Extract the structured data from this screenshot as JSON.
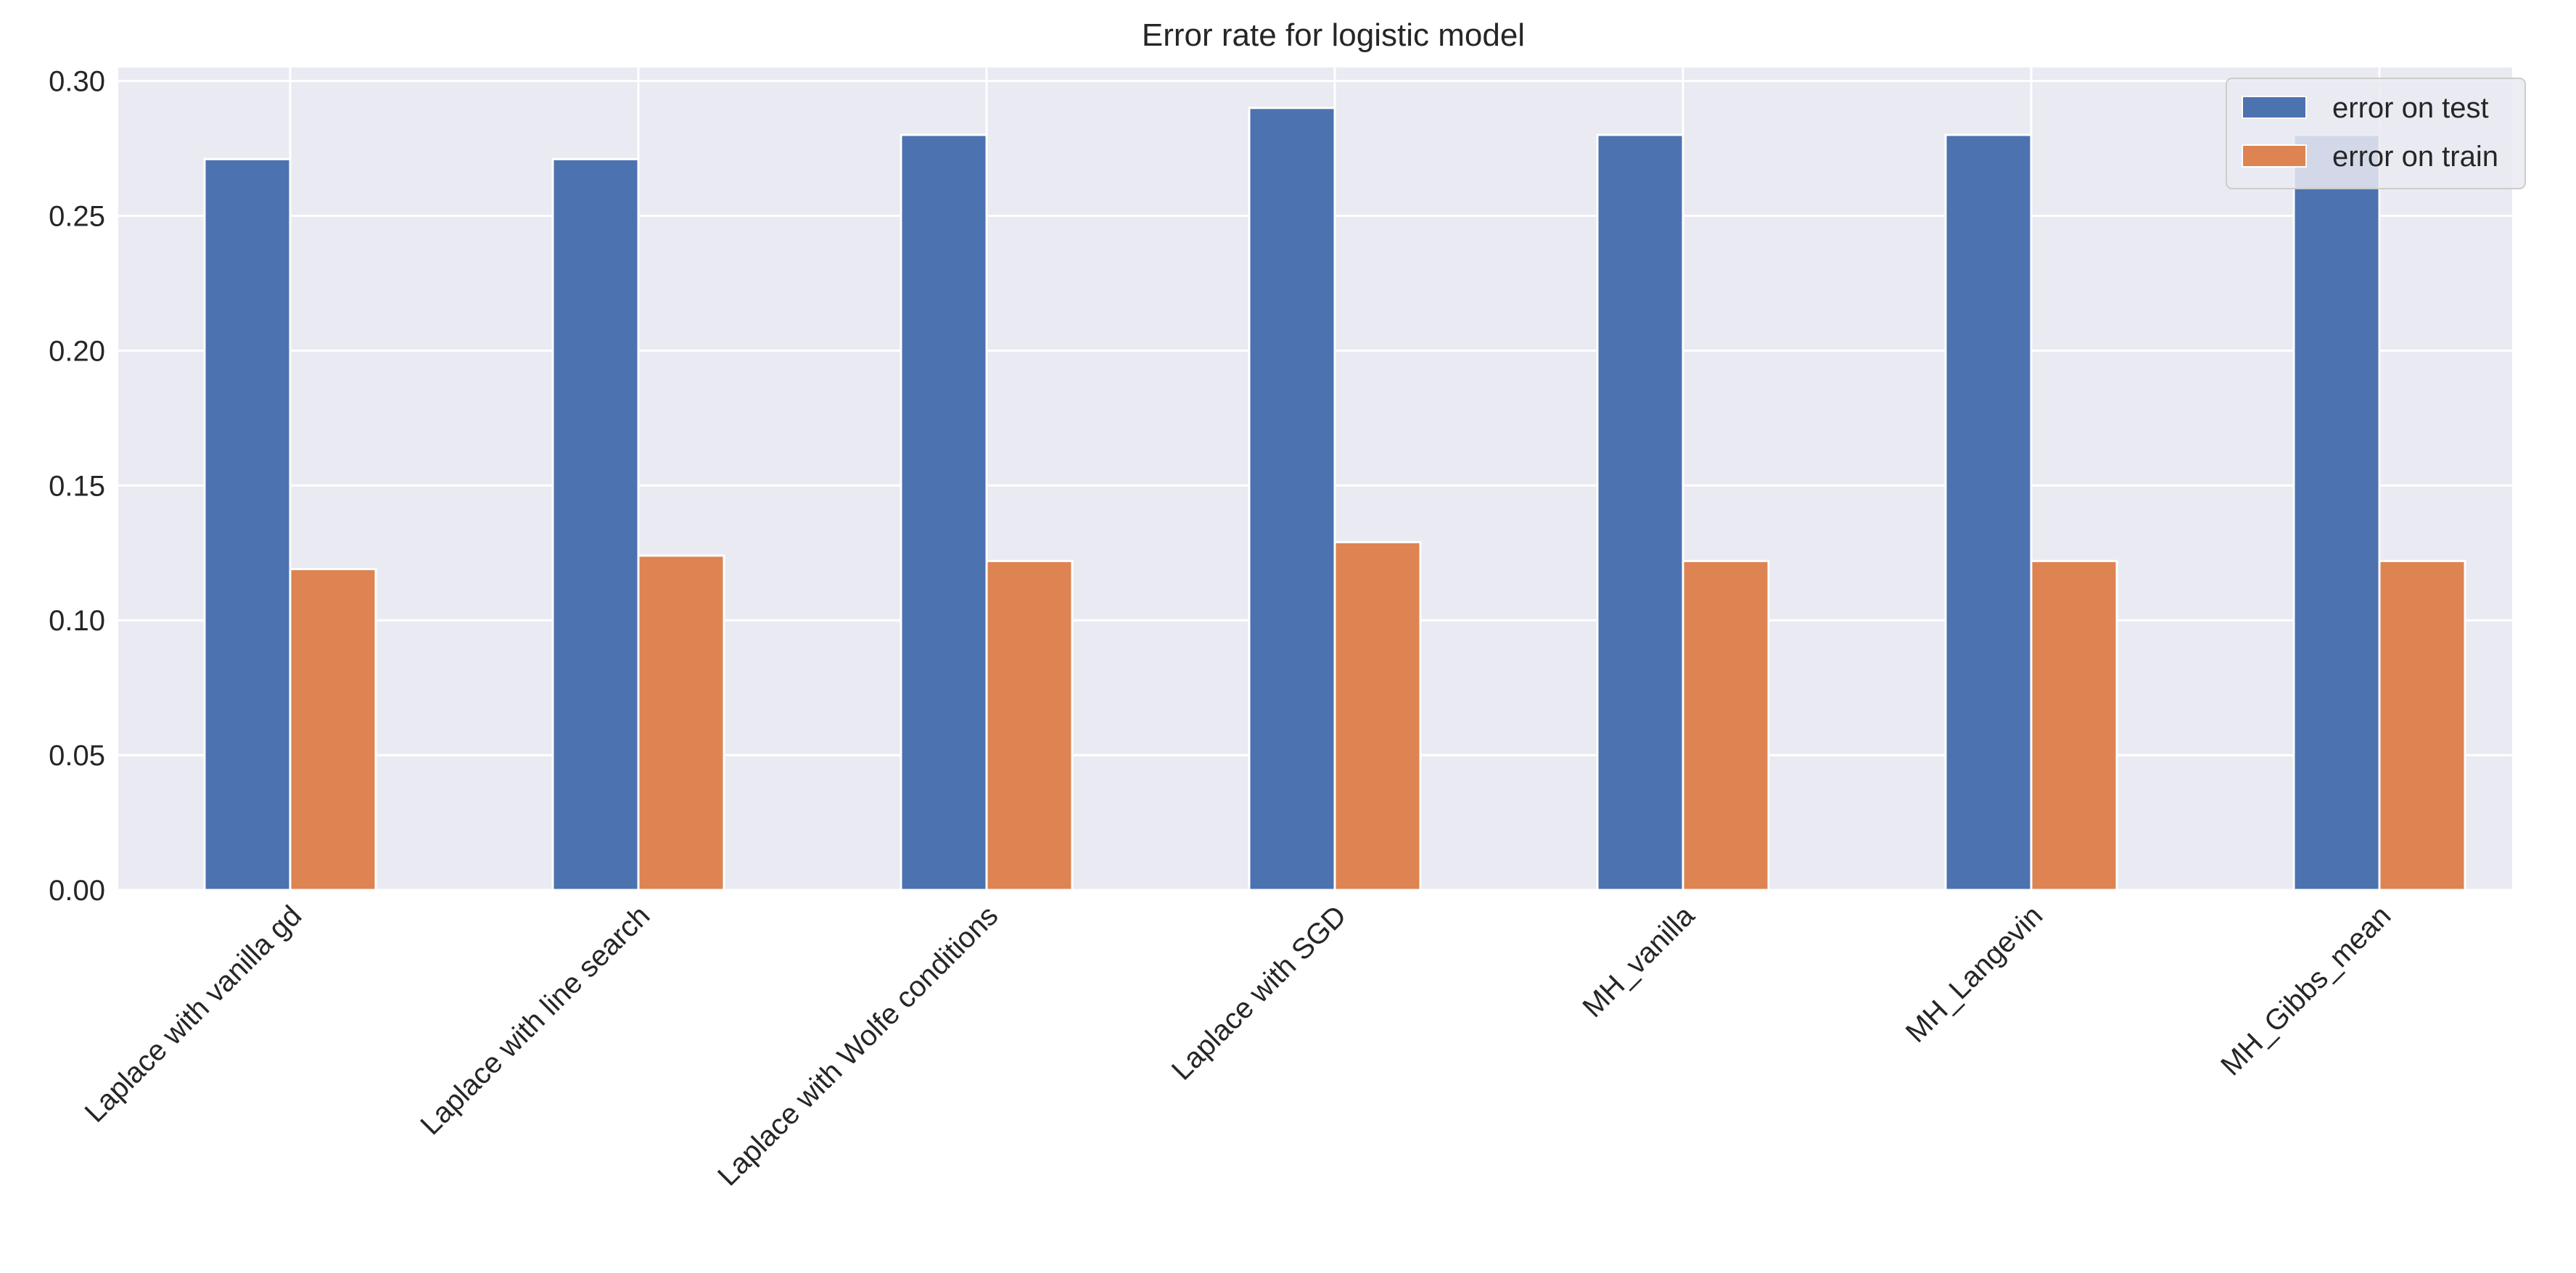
{
  "chart_data": {
    "type": "bar",
    "title": "Error rate for logistic model",
    "xlabel": "",
    "ylabel": "",
    "categories": [
      "Laplace with vanilla gd",
      "Laplace with line search",
      "Laplace with Wolfe conditions",
      "Laplace with SGD",
      "MH_vanilla",
      "MH_Langevin",
      "MH_Gibbs_mean"
    ],
    "series": [
      {
        "name": "error on test",
        "color": "#4c72b0",
        "values": [
          0.271,
          0.271,
          0.28,
          0.29,
          0.28,
          0.28,
          0.28
        ]
      },
      {
        "name": "error on train",
        "color": "#dd8452",
        "values": [
          0.119,
          0.124,
          0.122,
          0.129,
          0.122,
          0.122,
          0.122
        ]
      }
    ],
    "ylim": [
      0,
      0.305
    ],
    "yticks": [
      "0.00",
      "0.05",
      "0.10",
      "0.15",
      "0.20",
      "0.25",
      "0.30"
    ],
    "grid": true,
    "legend_position": "top-right",
    "background_color": "#eaeaf2",
    "grid_color": "#ffffff"
  }
}
